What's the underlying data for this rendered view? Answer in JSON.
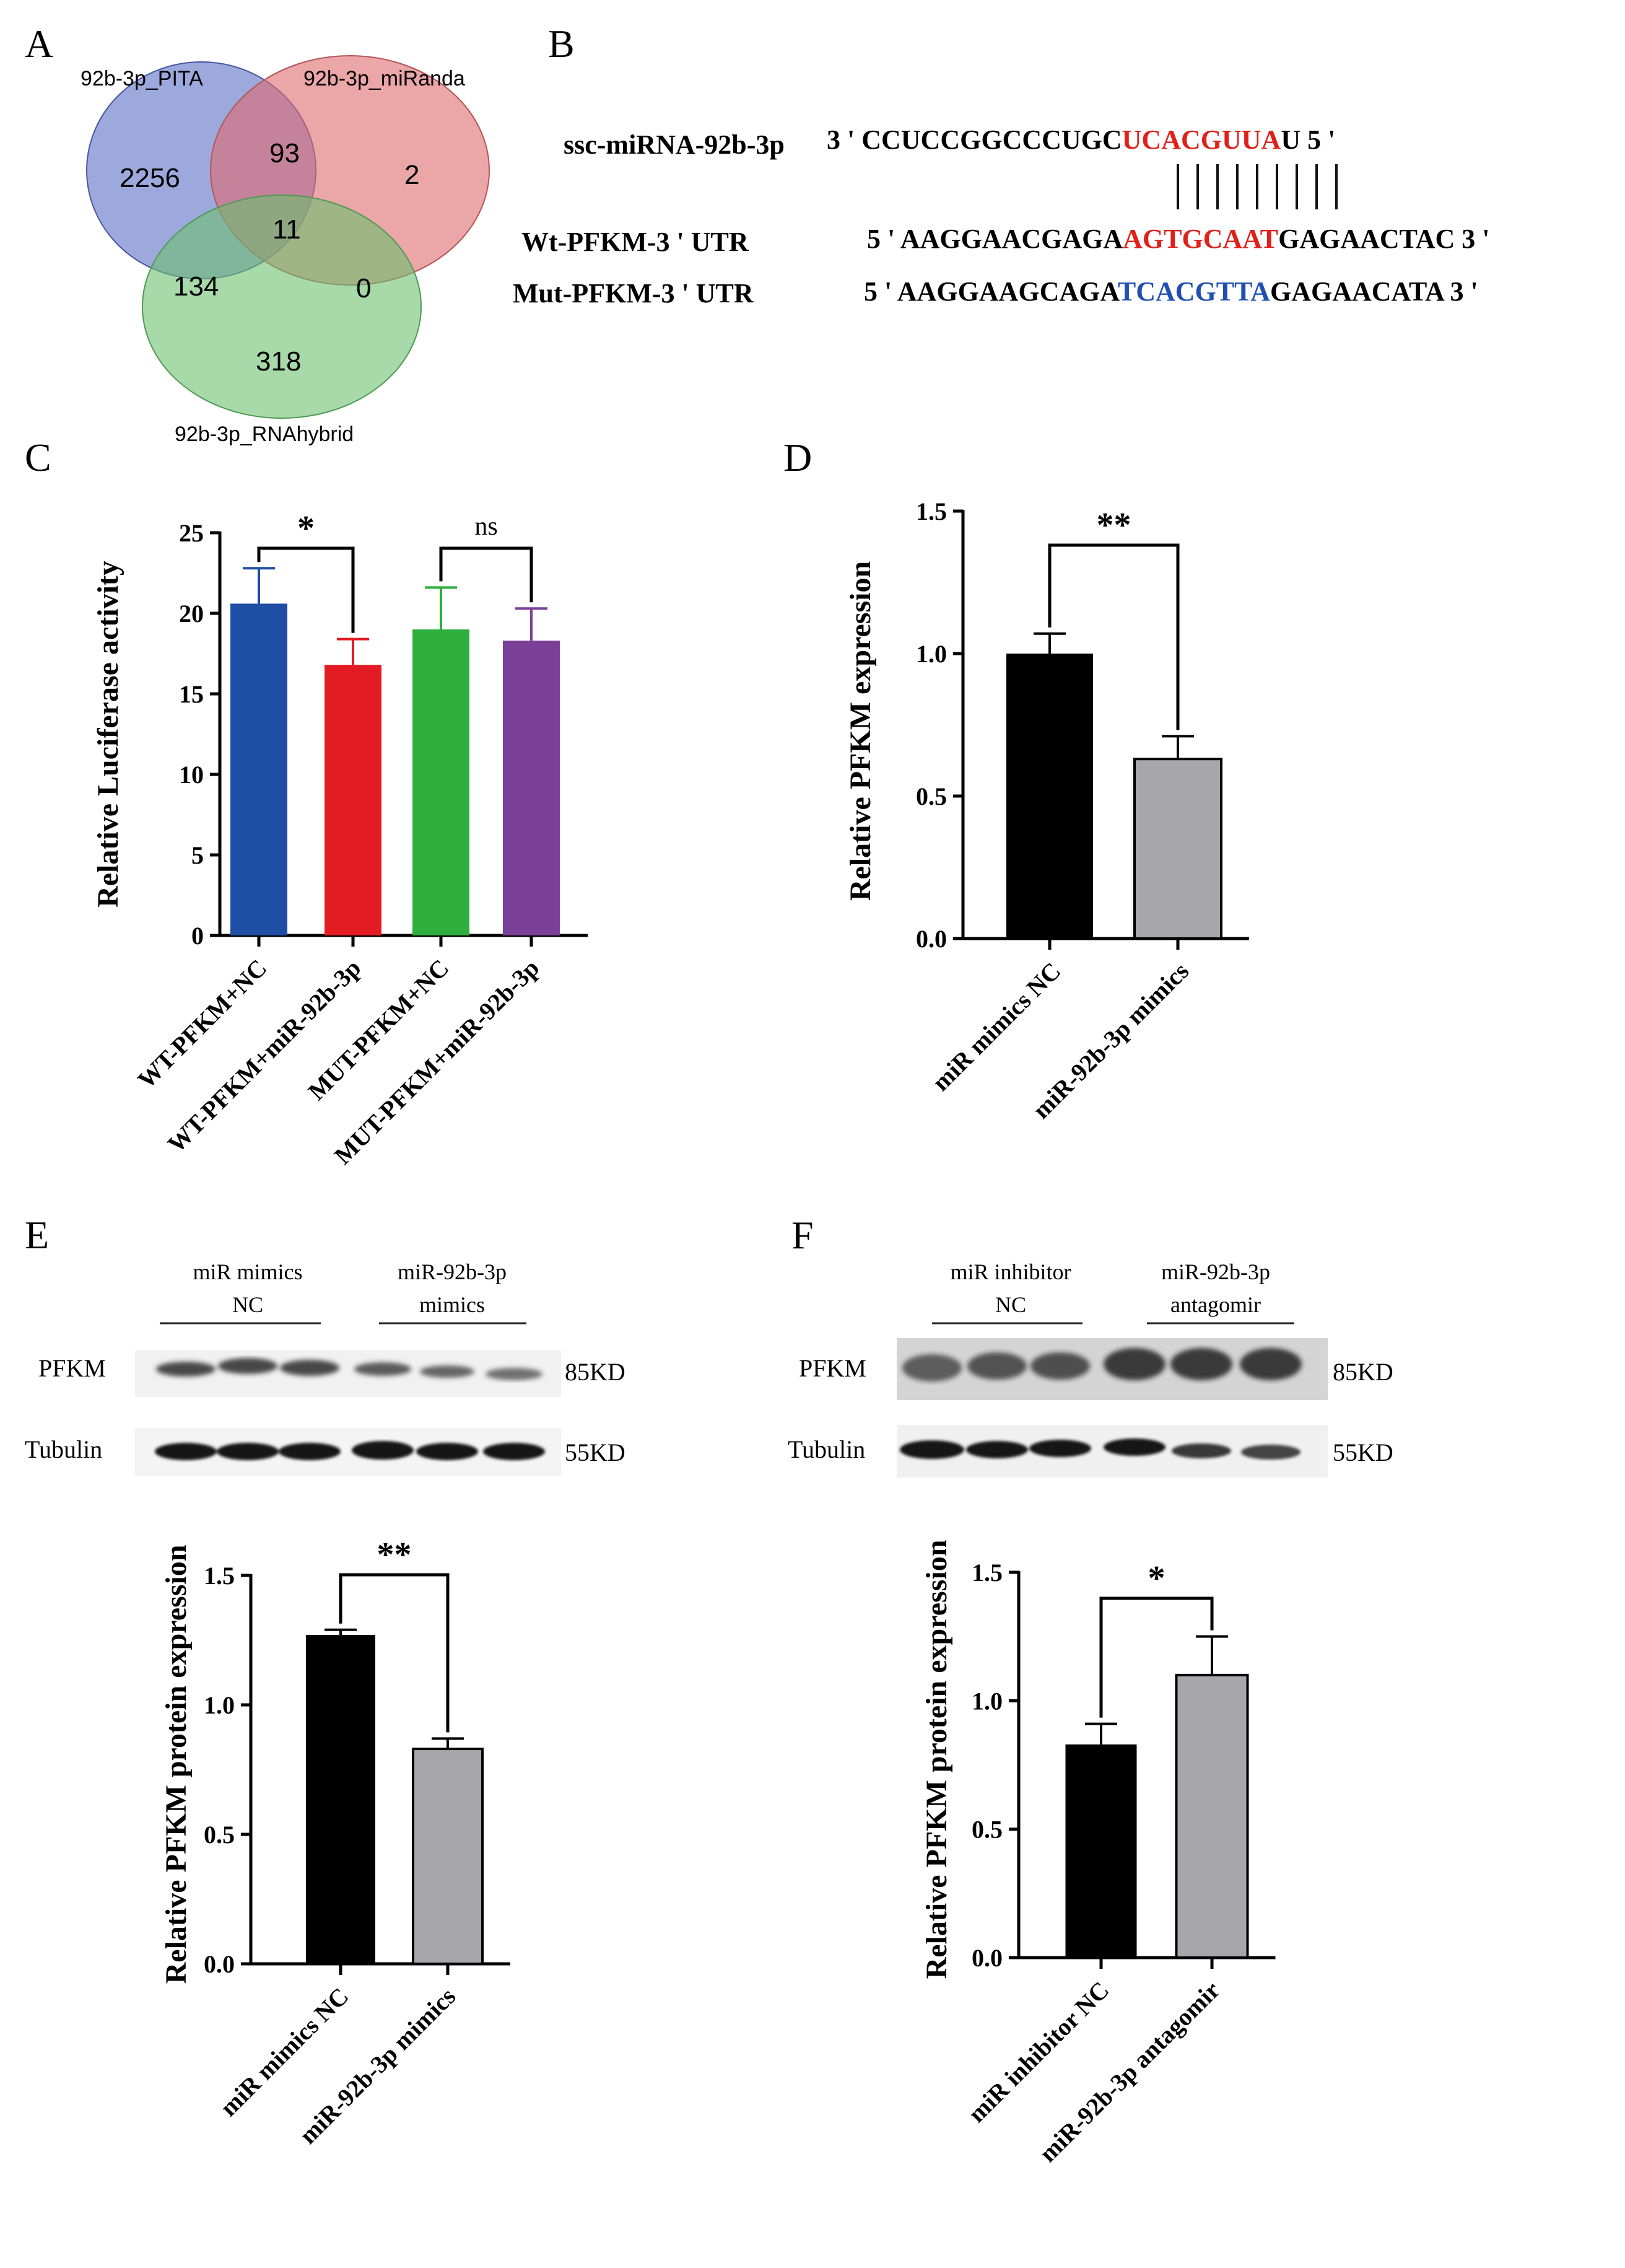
{
  "panels": {
    "A": "A",
    "B": "B",
    "C": "C",
    "D": "D",
    "E": "E",
    "F": "F"
  },
  "venn": {
    "sets": [
      {
        "name": "92b-3p_PITA",
        "color": "#5b6fc4"
      },
      {
        "name": "92b-3p_miRanda",
        "color": "#de6b6e"
      },
      {
        "name": "92b-3p_RNAhybrid",
        "color": "#6cc06f"
      }
    ],
    "regions": {
      "pita_only": "2256",
      "pita_miranda": "93",
      "miranda_only": "2",
      "all": "11",
      "pita_rnahybrid": "134",
      "miranda_rnahybrid": "0",
      "rnahybrid_only": "318"
    }
  },
  "sequence": {
    "mirna_label": "ssc-miRNA-92b-3p",
    "mirna_prefix": "3 ' CCUCCGGCCCUGC",
    "mirna_seed": "UCACGUUA",
    "mirna_suffix": "U 5 '",
    "wt_label": "Wt-PFKM-3 ' UTR",
    "wt_prefix": "5 ' AAGGAACGAGA",
    "wt_site": "AGTGCAAT",
    "wt_suffix": "GAGAACTAC 3 '",
    "mut_label": "Mut-PFKM-3 ' UTR",
    "mut_prefix": "5 ' AAGGAAGCAGA",
    "mut_site": "TCACGTTA",
    "mut_suffix": "GAGAACATA 3 '",
    "colors": {
      "seed": "#e0201a",
      "mut": "#1f4fb0",
      "text": "#111111"
    }
  },
  "chart_data": [
    {
      "panel": "C",
      "type": "bar",
      "ylabel": "Relative Luciferase activity",
      "ylim": [
        0,
        25
      ],
      "yticks": [
        0,
        5,
        10,
        15,
        20,
        25
      ],
      "categories": [
        "WT-PFKM+NC",
        "WT-PFKM+miR-92b-3p",
        "MUT-PFKM+NC",
        "MUT-PFKM+miR-92b-3p"
      ],
      "values": [
        20.6,
        16.8,
        19.0,
        18.3
      ],
      "errors": [
        2.2,
        1.6,
        2.6,
        2.0
      ],
      "colors": [
        "#1f4ea5",
        "#e31b23",
        "#2eae3c",
        "#7a3f97"
      ],
      "significance": [
        {
          "pair": [
            0,
            1
          ],
          "label": "*"
        },
        {
          "pair": [
            2,
            3
          ],
          "label": "ns"
        }
      ]
    },
    {
      "panel": "D",
      "type": "bar",
      "ylabel": "Relative PFKM expression",
      "ylim": [
        0,
        1.5
      ],
      "yticks": [
        "0.0",
        "0.5",
        "1.0",
        "1.5"
      ],
      "categories": [
        "miR mimics NC",
        "miR-92b-3p mimics"
      ],
      "values": [
        1.0,
        0.63
      ],
      "errors": [
        0.07,
        0.08
      ],
      "colors": [
        "#000000",
        "#a7a7ab"
      ],
      "significance": [
        {
          "pair": [
            0,
            1
          ],
          "label": "**"
        }
      ]
    },
    {
      "panel": "E",
      "type": "bar",
      "ylabel": "Relative PFKM protein expression",
      "ylim": [
        0,
        1.5
      ],
      "yticks": [
        "0.0",
        "0.5",
        "1.0",
        "1.5"
      ],
      "categories": [
        "miR mimics NC",
        "miR-92b-3p mimics"
      ],
      "values": [
        1.27,
        0.83
      ],
      "errors": [
        0.02,
        0.04
      ],
      "colors": [
        "#000000",
        "#a7a7ab"
      ],
      "significance": [
        {
          "pair": [
            0,
            1
          ],
          "label": "**"
        }
      ]
    },
    {
      "panel": "F",
      "type": "bar",
      "ylabel": "Relative PFKM protein expression",
      "ylim": [
        0,
        1.5
      ],
      "yticks": [
        "0.0",
        "0.5",
        "1.0",
        "1.5"
      ],
      "categories": [
        "miR inhibitor NC",
        "miR-92b-3p antagomir"
      ],
      "values": [
        0.83,
        1.1
      ],
      "errors": [
        0.08,
        0.15
      ],
      "colors": [
        "#000000",
        "#a7a7ab"
      ],
      "significance": [
        {
          "pair": [
            0,
            1
          ],
          "label": "*"
        }
      ]
    }
  ],
  "blots": {
    "E": {
      "group1": [
        "miR mimics",
        "NC"
      ],
      "group2": [
        "miR-92b-3p",
        "mimics"
      ],
      "row1": "PFKM",
      "row2": "Tubulin",
      "size1": "85KD",
      "size2": "55KD"
    },
    "F": {
      "group1": [
        "miR inhibitor",
        "NC"
      ],
      "group2": [
        "miR-92b-3p",
        "antagomir"
      ],
      "row1": "PFKM",
      "row2": "Tubulin",
      "size1": "85KD",
      "size2": "55KD"
    }
  }
}
